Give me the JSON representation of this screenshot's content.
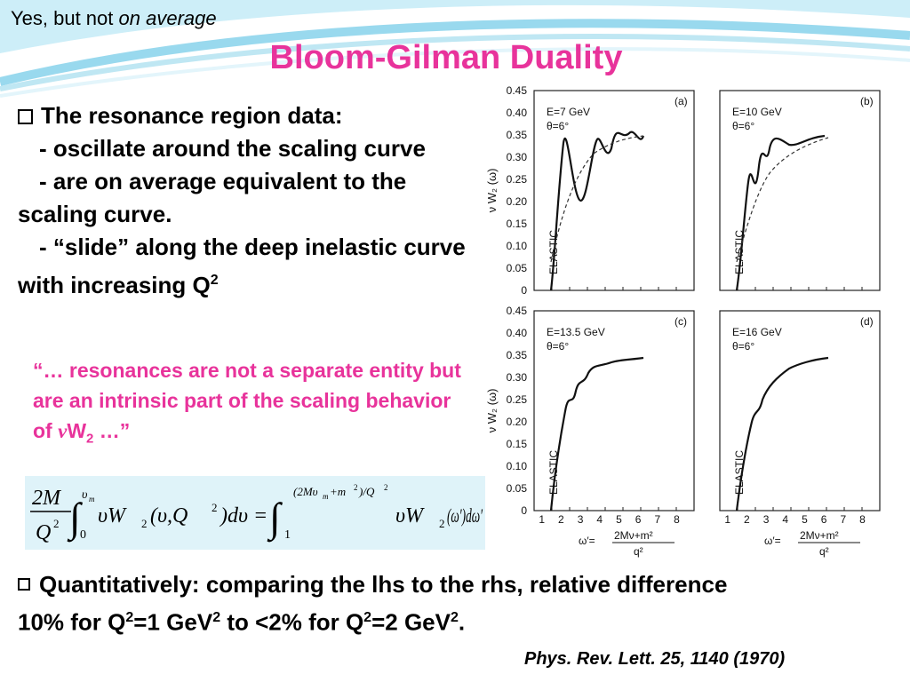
{
  "slide": {
    "kicker_plain": "Yes, but not ",
    "kicker_italic": "on average",
    "title": "Bloom-Gilman Duality",
    "bullet1": {
      "head": "The resonance region data:",
      "lines": [
        "- oscillate around the scaling curve",
        "- are on average equivalent to the scaling curve.",
        "- “slide” along the deep inelastic curve with increasing Q"
      ],
      "q_sup": "2"
    },
    "quote": {
      "text": "“… resonances are not a separate entity but are an intrinsic part of the scaling behavior of ",
      "nu": "ν",
      "w": "W",
      "sub": "2",
      "tail": " …”"
    },
    "equation": {
      "lhs_num": "2M",
      "lhs_den": "Q",
      "sq": "2",
      "upper_lhs": "υ",
      "upper_lhs_sub": "m",
      "lower_lhs": "0",
      "lhs_body": "υW",
      "sub2": "2",
      "lhs_args": "(υ,Q",
      "lhs_close": ")dυ =",
      "upper_rhs": "(2Mυ",
      "upper_rhs_tail": "+m",
      "upper_rhs_end": ")/Q",
      "lower_rhs": "1",
      "rhs_body": "υW",
      "rhs_args": "(ω′)dω′"
    },
    "bullet2": {
      "t1": "Quantitatively: comparing the lhs to the rhs, relative difference 10% for Q",
      "t2": "=1 GeV",
      "t3": " to <2% for Q",
      "t4": "=2 GeV",
      "t5": ".",
      "sup": "2"
    },
    "reference": "Phys. Rev. Lett. 25, 1140 (1970)"
  },
  "figure": {
    "ylabel": "ν W₂ (ω)",
    "y_ticks": [
      "0.45",
      "0.40",
      "0.35",
      "0.30",
      "0.25",
      "0.20",
      "0.15",
      "0.10",
      "0.05",
      "0"
    ],
    "x_ticks": [
      "1",
      "2",
      "3",
      "4",
      "5",
      "6",
      "7",
      "8"
    ],
    "xlabel_left": "ω′=",
    "xlabel_num": "2Mν+m²",
    "xlabel_den": "q²",
    "elastic": "ELASTIC",
    "panels": [
      {
        "tag": "(a)",
        "energy": "E=7 GeV",
        "angle": "θ=6°"
      },
      {
        "tag": "(b)",
        "energy": "E=10 GeV",
        "angle": "θ=6°"
      },
      {
        "tag": "(c)",
        "energy": "E=13.5 GeV",
        "angle": "θ=6°"
      },
      {
        "tag": "(d)",
        "energy": "E=16 GeV",
        "angle": "θ=6°"
      }
    ]
  },
  "colors": {
    "accent": "#e8339b",
    "equation_bg": "#dff3f9",
    "wave": "#7fd0ea"
  }
}
